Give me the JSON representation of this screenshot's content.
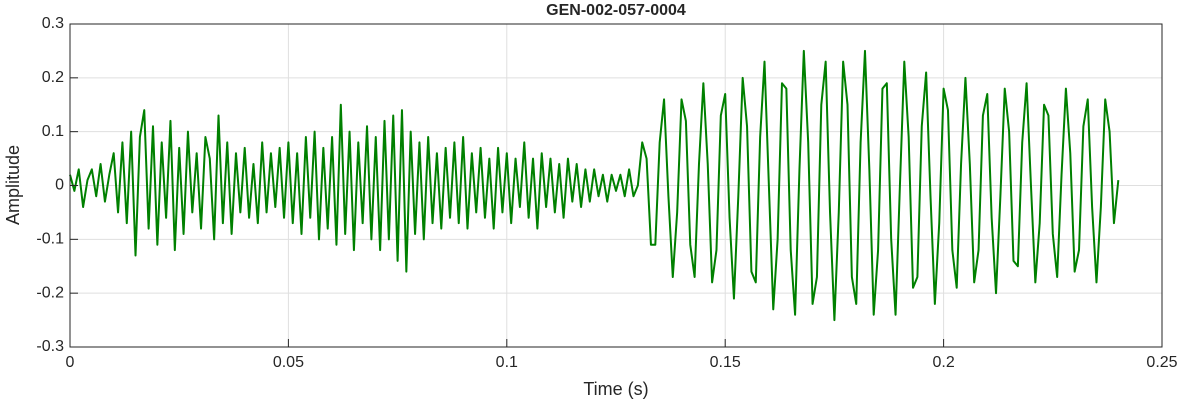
{
  "chart_data": {
    "type": "line",
    "title": "GEN-002-057-0004",
    "xlabel": "Time (s)",
    "ylabel": "Amplitude",
    "color": "#008000",
    "grid": true,
    "xlim": [
      0,
      0.25
    ],
    "ylim": [
      -0.3,
      0.3
    ],
    "xticks": [
      0,
      0.05,
      0.1,
      0.15,
      0.2,
      0.25
    ],
    "yticks": [
      -0.3,
      -0.2,
      -0.1,
      0,
      0.1,
      0.2,
      0.3
    ],
    "x": [
      0,
      0.001,
      0.002,
      0.003,
      0.004,
      0.005,
      0.006,
      0.007,
      0.008,
      0.009,
      0.01,
      0.011,
      0.012,
      0.013,
      0.014,
      0.015,
      0.016,
      0.017,
      0.018,
      0.019,
      0.02,
      0.021,
      0.022,
      0.023,
      0.024,
      0.025,
      0.026,
      0.027,
      0.028,
      0.029,
      0.03,
      0.031,
      0.032,
      0.033,
      0.034,
      0.035,
      0.036,
      0.037,
      0.038,
      0.039,
      0.04,
      0.041,
      0.042,
      0.043,
      0.044,
      0.045,
      0.046,
      0.047,
      0.048,
      0.049,
      0.05,
      0.051,
      0.052,
      0.053,
      0.054,
      0.055,
      0.056,
      0.057,
      0.058,
      0.059,
      0.06,
      0.061,
      0.062,
      0.063,
      0.064,
      0.065,
      0.066,
      0.067,
      0.068,
      0.069,
      0.07,
      0.071,
      0.072,
      0.073,
      0.074,
      0.075,
      0.076,
      0.077,
      0.078,
      0.079,
      0.08,
      0.081,
      0.082,
      0.083,
      0.084,
      0.085,
      0.086,
      0.087,
      0.088,
      0.089,
      0.09,
      0.091,
      0.092,
      0.093,
      0.094,
      0.095,
      0.096,
      0.097,
      0.098,
      0.099,
      0.1,
      0.101,
      0.102,
      0.103,
      0.104,
      0.105,
      0.106,
      0.107,
      0.108,
      0.109,
      0.11,
      0.111,
      0.112,
      0.113,
      0.114,
      0.115,
      0.116,
      0.117,
      0.118,
      0.119,
      0.12,
      0.121,
      0.122,
      0.123,
      0.124,
      0.125,
      0.126,
      0.127,
      0.128,
      0.129,
      0.13,
      0.131,
      0.132,
      0.133,
      0.134,
      0.135,
      0.136,
      0.137,
      0.138,
      0.139,
      0.14,
      0.141,
      0.142,
      0.143,
      0.144,
      0.145,
      0.146,
      0.147,
      0.148,
      0.149,
      0.15,
      0.151,
      0.152,
      0.153,
      0.154,
      0.155,
      0.156,
      0.157,
      0.158,
      0.159,
      0.16,
      0.161,
      0.162,
      0.163,
      0.164,
      0.165,
      0.166,
      0.167,
      0.168,
      0.169,
      0.17,
      0.171,
      0.172,
      0.173,
      0.174,
      0.175,
      0.176,
      0.177,
      0.178,
      0.179,
      0.18,
      0.181,
      0.182,
      0.183,
      0.184,
      0.185,
      0.186,
      0.187,
      0.188,
      0.189,
      0.19,
      0.191,
      0.192,
      0.193,
      0.194,
      0.195,
      0.196,
      0.197,
      0.198,
      0.199,
      0.2,
      0.201,
      0.202,
      0.203,
      0.204,
      0.205,
      0.206,
      0.207,
      0.208,
      0.209,
      0.21,
      0.211,
      0.212,
      0.213,
      0.214,
      0.215,
      0.216,
      0.217,
      0.218,
      0.219,
      0.22,
      0.221,
      0.222,
      0.223,
      0.224,
      0.225,
      0.226,
      0.227,
      0.228,
      0.229,
      0.23,
      0.231,
      0.232,
      0.233,
      0.234,
      0.235,
      0.236,
      0.237,
      0.238,
      0.239,
      0.24
    ],
    "values": [
      0.02,
      -0.01,
      0.03,
      -0.04,
      0.01,
      0.03,
      -0.02,
      0.04,
      -0.03,
      0.02,
      0.06,
      -0.05,
      0.08,
      -0.07,
      0.1,
      -0.13,
      0.09,
      0.14,
      -0.08,
      0.11,
      -0.11,
      0.08,
      -0.06,
      0.12,
      -0.12,
      0.07,
      -0.09,
      0.1,
      -0.05,
      0.06,
      -0.08,
      0.09,
      0.05,
      -0.1,
      0.13,
      -0.07,
      0.08,
      -0.09,
      0.06,
      -0.05,
      0.07,
      -0.06,
      0.04,
      -0.07,
      0.08,
      -0.05,
      0.06,
      -0.04,
      0.07,
      -0.06,
      0.08,
      -0.07,
      0.06,
      -0.09,
      0.09,
      -0.06,
      0.1,
      -0.1,
      0.07,
      -0.08,
      0.09,
      -0.11,
      0.15,
      -0.09,
      0.1,
      -0.12,
      0.08,
      -0.07,
      0.11,
      -0.1,
      0.09,
      -0.12,
      0.12,
      -0.1,
      0.13,
      -0.14,
      0.14,
      -0.16,
      0.1,
      -0.09,
      0.08,
      -0.1,
      0.09,
      -0.07,
      0.06,
      -0.08,
      0.07,
      -0.06,
      0.08,
      -0.07,
      0.09,
      -0.08,
      0.06,
      -0.05,
      0.07,
      -0.06,
      0.05,
      -0.08,
      0.07,
      -0.05,
      0.06,
      -0.07,
      0.05,
      -0.04,
      0.08,
      -0.06,
      0.05,
      -0.08,
      0.06,
      -0.04,
      0.05,
      -0.05,
      0.04,
      -0.06,
      0.05,
      -0.03,
      0.04,
      -0.04,
      0.03,
      -0.03,
      0.03,
      -0.02,
      0.02,
      -0.03,
      0.02,
      -0.01,
      0.02,
      -0.02,
      0.03,
      -0.02,
      0,
      0.08,
      0.05,
      -0.11,
      -0.11,
      0.08,
      0.16,
      -0.02,
      -0.17,
      -0.05,
      0.16,
      0.12,
      -0.11,
      -0.17,
      0.04,
      0.19,
      0.04,
      -0.18,
      -0.12,
      0.13,
      0.17,
      -0.06,
      -0.21,
      -0.02,
      0.2,
      0.11,
      -0.16,
      -0.18,
      0.09,
      0.23,
      0,
      -0.23,
      -0.1,
      0.19,
      0.18,
      -0.12,
      -0.24,
      0.03,
      0.25,
      0.08,
      -0.22,
      -0.17,
      0.15,
      0.23,
      -0.05,
      -0.25,
      -0.05,
      0.23,
      0.15,
      -0.17,
      -0.22,
      0.08,
      0.25,
      0.03,
      -0.24,
      -0.12,
      0.18,
      0.19,
      -0.1,
      -0.24,
      0,
      0.23,
      0.09,
      -0.19,
      -0.17,
      0.11,
      0.21,
      -0.02,
      -0.22,
      -0.07,
      0.18,
      0.14,
      -0.12,
      -0.19,
      0.04,
      0.2,
      0.04,
      -0.18,
      -0.12,
      0.13,
      0.17,
      -0.06,
      -0.2,
      -0.02,
      0.18,
      0.1,
      -0.14,
      -0.15,
      0.08,
      0.19,
      0,
      -0.18,
      -0.07,
      0.15,
      0.13,
      -0.09,
      -0.17,
      0.02,
      0.18,
      0.06,
      -0.16,
      -0.12,
      0.11,
      0.16,
      -0.04,
      -0.18,
      -0.04,
      0.16,
      0.1,
      -0.07,
      0.01
    ]
  }
}
